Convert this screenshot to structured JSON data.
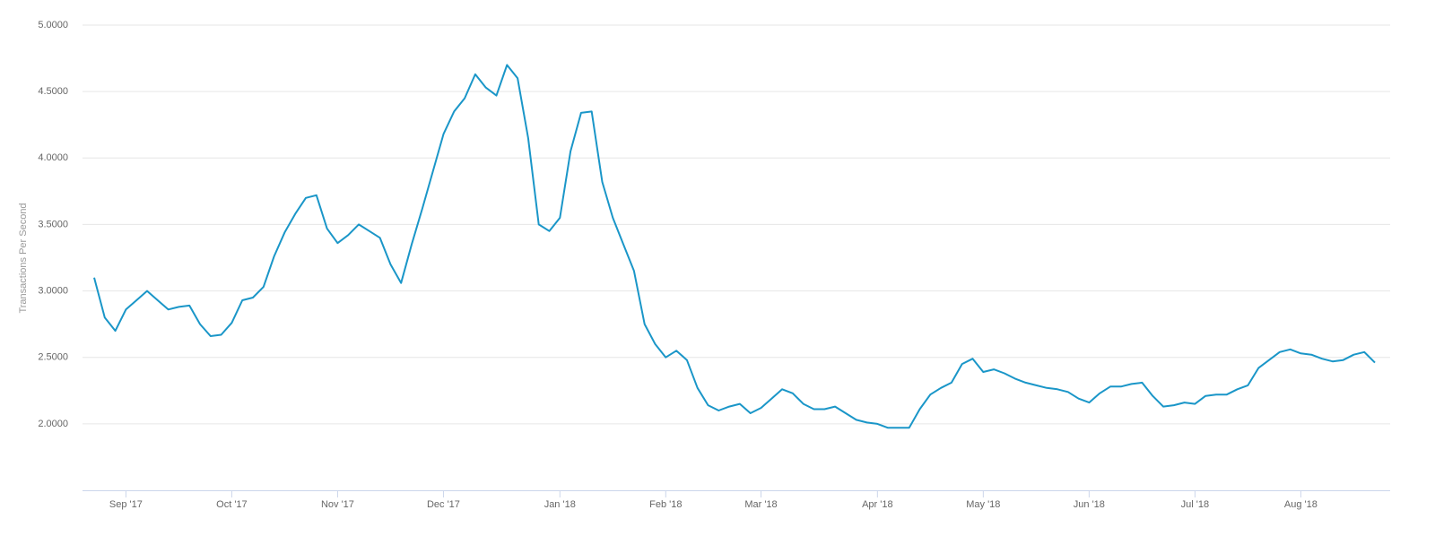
{
  "chart_data": {
    "type": "line",
    "y_label": "Transactions Per Second",
    "categories": [
      null,
      null,
      null,
      "Sep '17",
      null,
      null,
      null,
      null,
      null,
      null,
      null,
      null,
      null,
      "Oct '17",
      null,
      null,
      null,
      null,
      null,
      null,
      null,
      null,
      null,
      "Nov '17",
      null,
      null,
      null,
      null,
      null,
      null,
      null,
      null,
      null,
      "Dec '17",
      null,
      null,
      null,
      null,
      null,
      null,
      null,
      null,
      null,
      null,
      "Jan '18",
      null,
      null,
      null,
      null,
      null,
      null,
      null,
      null,
      null,
      "Feb '18",
      null,
      null,
      null,
      null,
      null,
      null,
      null,
      null,
      "Mar '18",
      null,
      null,
      null,
      null,
      null,
      null,
      null,
      null,
      null,
      null,
      "Apr '18",
      null,
      null,
      null,
      null,
      null,
      null,
      null,
      null,
      null,
      "May '18",
      null,
      null,
      null,
      null,
      null,
      null,
      null,
      null,
      null,
      "Jun '18",
      null,
      null,
      null,
      null,
      null,
      null,
      null,
      null,
      null,
      "Jul '18",
      null,
      null,
      null,
      null,
      null,
      null,
      null,
      null,
      null,
      "Aug '18",
      null,
      null,
      null,
      null,
      null,
      null,
      null
    ],
    "series": [
      {
        "name": "Transactions Per Second",
        "color": "#1a96c8",
        "values": [
          3.1,
          2.8,
          2.7,
          2.86,
          2.93,
          3.0,
          2.93,
          2.86,
          2.88,
          2.89,
          2.75,
          2.66,
          2.67,
          2.76,
          2.93,
          2.95,
          3.03,
          3.26,
          3.44,
          3.58,
          3.7,
          3.72,
          3.47,
          3.36,
          3.42,
          3.5,
          3.45,
          3.4,
          3.2,
          3.06,
          3.35,
          3.62,
          3.9,
          4.18,
          4.35,
          4.45,
          4.63,
          4.53,
          4.47,
          4.7,
          4.6,
          4.15,
          3.5,
          3.45,
          3.55,
          4.05,
          4.34,
          4.35,
          3.82,
          3.55,
          3.35,
          3.15,
          2.75,
          2.6,
          2.5,
          2.55,
          2.48,
          2.27,
          2.14,
          2.1,
          2.13,
          2.15,
          2.08,
          2.12,
          2.19,
          2.26,
          2.23,
          2.15,
          2.11,
          2.11,
          2.13,
          2.08,
          2.03,
          2.01,
          2.0,
          1.97,
          1.97,
          1.97,
          2.11,
          2.22,
          2.27,
          2.31,
          2.45,
          2.49,
          2.39,
          2.41,
          2.38,
          2.34,
          2.31,
          2.29,
          2.27,
          2.26,
          2.24,
          2.19,
          2.16,
          2.23,
          2.28,
          2.28,
          2.3,
          2.31,
          2.21,
          2.13,
          2.14,
          2.16,
          2.15,
          2.21,
          2.22,
          2.22,
          2.26,
          2.29,
          2.42,
          2.48,
          2.54,
          2.56,
          2.53,
          2.52,
          2.49,
          2.47,
          2.48,
          2.52,
          2.54,
          2.46
        ]
      }
    ],
    "ylim": [
      1.5,
      5.0
    ],
    "yticks": [
      {
        "value": 2,
        "label": "2.0000"
      },
      {
        "value": 2.5,
        "label": "2.5000"
      },
      {
        "value": 3,
        "label": "3.0000"
      },
      {
        "value": 3.5,
        "label": "3.5000"
      },
      {
        "value": 4,
        "label": "4.0000"
      },
      {
        "value": 4.5,
        "label": "4.5000"
      },
      {
        "value": 5,
        "label": "5.0000"
      }
    ],
    "grid": true
  }
}
